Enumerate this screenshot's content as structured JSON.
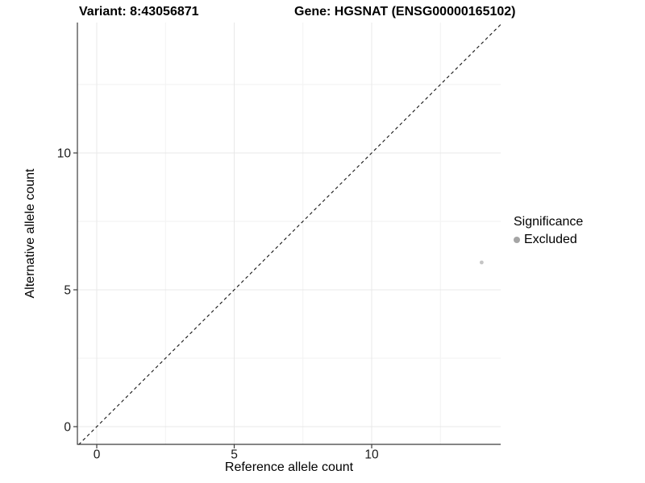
{
  "header": {
    "variant_label": "Variant: 8:43056871",
    "gene_label": "Gene: HGSNAT (ENSG00000165102)"
  },
  "chart_data": {
    "type": "scatter",
    "xlabel": "Reference allele count",
    "ylabel": "Alternative allele count",
    "xlim": [
      -0.7,
      14.7
    ],
    "ylim": [
      -0.65,
      14.75
    ],
    "x_major_ticks": [
      0,
      5,
      10
    ],
    "y_major_ticks": [
      0,
      5,
      10
    ],
    "x_minor_gridlines": [
      2.5,
      7.5,
      12.5
    ],
    "y_minor_gridlines": [
      2.5,
      7.5,
      12.5
    ],
    "grid": true,
    "identity_line": {
      "style": "dashed",
      "from": [
        -0.66,
        -0.66
      ],
      "to": [
        14.7,
        14.7
      ],
      "color": "#141414"
    },
    "series": [
      {
        "name": "Excluded",
        "color": "#c5c5c5",
        "points": [
          {
            "x": 14,
            "y": 6
          }
        ]
      }
    ],
    "legend": {
      "title": "Significance",
      "position": "right",
      "items": [
        {
          "label": "Excluded",
          "color": "#a5a5a5"
        }
      ]
    },
    "colors": {
      "background": "#ffffff",
      "major_grid": "#e8e8e8",
      "minor_grid": "#f2f2f2",
      "axis_line": "#3c3c3c",
      "tick_label": "#1a1a1a"
    }
  }
}
